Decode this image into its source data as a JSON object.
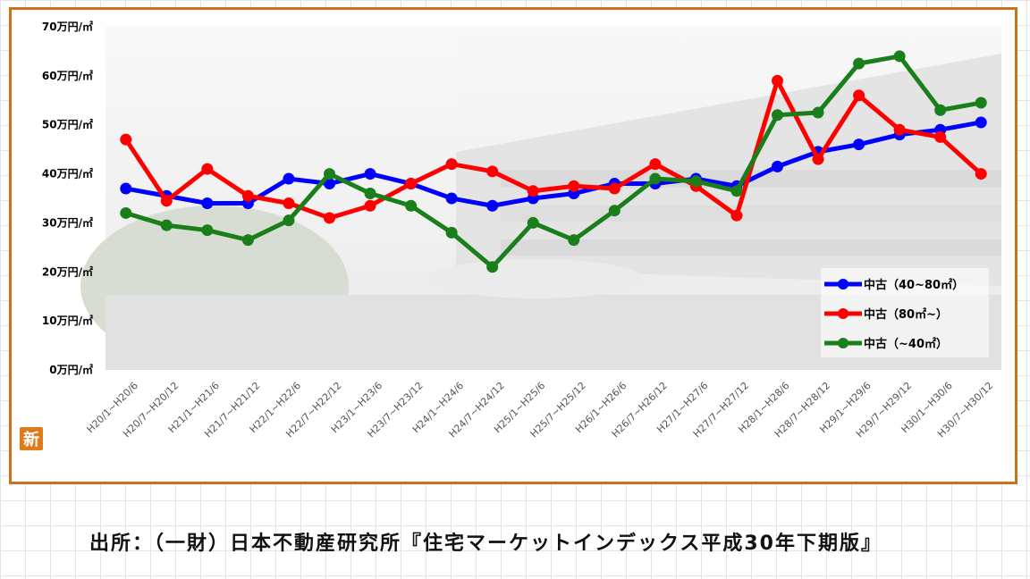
{
  "source_text": "出所：（一財）日本不動産研究所『住宅マーケットインデックス平成30年下期版』",
  "badge": "新",
  "chart_data": {
    "type": "line",
    "y_ticks": [
      "0万円/㎡",
      "10万円/㎡",
      "20万円/㎡",
      "30万円/㎡",
      "40万円/㎡",
      "50万円/㎡",
      "60万円/㎡",
      "70万円/㎡"
    ],
    "ylim": [
      0,
      70
    ],
    "categories": [
      "H20/1~H20/6",
      "H20/7~H20/12",
      "H21/1~H21/6",
      "H21/7~H21/12",
      "H22/1~H22/6",
      "H22/7~H22/12",
      "H23/1~H23/6",
      "H23/7~H23/12",
      "H24/1~H24/6",
      "H24/7~H24/12",
      "H25/1~H25/6",
      "H25/7~H25/12",
      "H26/1~H26/6",
      "H26/7~H26/12",
      "H27/1~H27/6",
      "H27/7~H27/12",
      "H28/1~H28/6",
      "H28/7~H28/12",
      "H29/1~H29/6",
      "H29/7~H29/12",
      "H30/1~H30/6",
      "H30/7~H30/12"
    ],
    "series": [
      {
        "name": "中古（40~80㎡）",
        "color": "#0000ff",
        "values": [
          37,
          35.5,
          34,
          34,
          39,
          38,
          40,
          38,
          35,
          33.5,
          35,
          36,
          38,
          38,
          39,
          37.5,
          41.5,
          44.5,
          46,
          48,
          49,
          50.5
        ]
      },
      {
        "name": "中古（80㎡~）",
        "color": "#ff0000",
        "values": [
          47,
          34.5,
          41,
          35.5,
          34,
          31,
          33.5,
          38,
          42,
          40.5,
          36.5,
          37.5,
          37,
          42,
          37.5,
          31.5,
          59,
          43,
          56,
          49,
          47.5,
          40
        ]
      },
      {
        "name": "中古（~40㎡）",
        "color": "#1a7f1a",
        "values": [
          32,
          29.5,
          28.5,
          26.5,
          30.5,
          40,
          36,
          33.5,
          28,
          21,
          30,
          26.5,
          32.5,
          39,
          38.5,
          36.5,
          52,
          52.5,
          62.5,
          64,
          53,
          54.5
        ]
      }
    ],
    "legend_position": "bottom-right",
    "grid": false
  }
}
